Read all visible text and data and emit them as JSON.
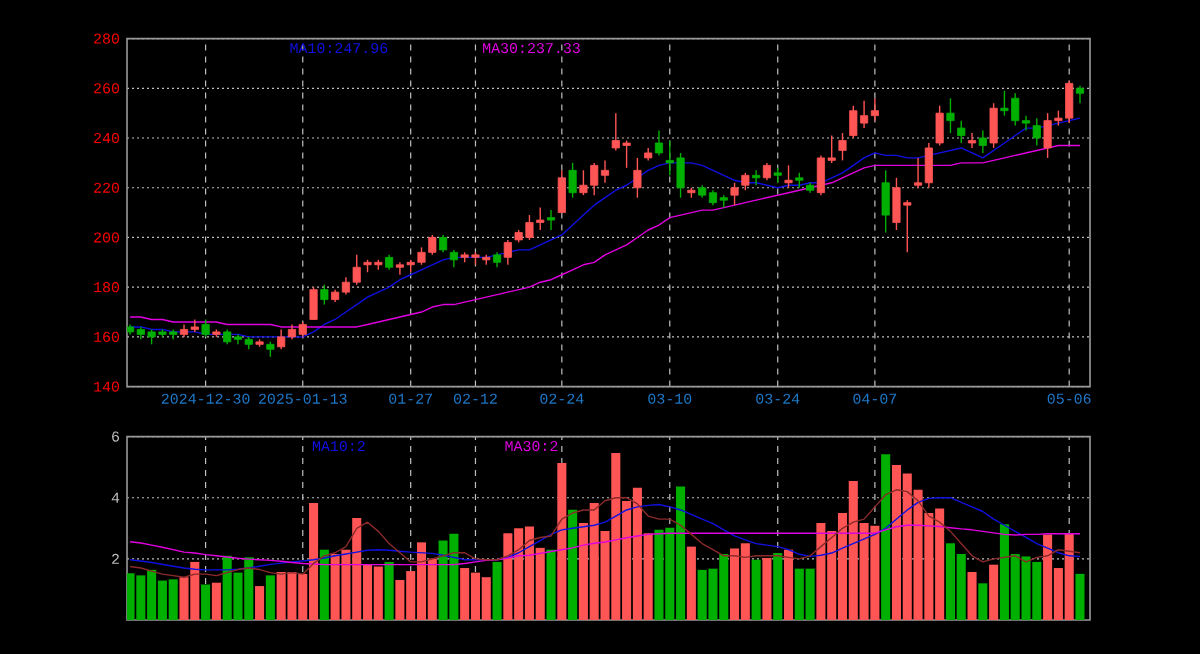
{
  "chart_data": [
    {
      "type": "candlestick",
      "categories": [
        null,
        null,
        null,
        null,
        null,
        null,
        null,
        "2024-12-30",
        null,
        null,
        null,
        null,
        null,
        null,
        null,
        null,
        "2025-01-13",
        null,
        null,
        null,
        null,
        null,
        null,
        null,
        null,
        null,
        "01-27",
        null,
        null,
        null,
        null,
        null,
        "02-12",
        null,
        null,
        null,
        null,
        null,
        null,
        null,
        "02-24",
        null,
        null,
        null,
        null,
        null,
        null,
        null,
        null,
        null,
        "03-10",
        null,
        null,
        null,
        null,
        null,
        null,
        null,
        null,
        null,
        "03-24",
        null,
        null,
        null,
        null,
        null,
        null,
        null,
        null,
        "04-07",
        null,
        null,
        null,
        null,
        null,
        null,
        null,
        null,
        null,
        null,
        null,
        null,
        null,
        null,
        null,
        null,
        null,
        "05-06",
        null
      ],
      "ohlc": [
        [
          164,
          165,
          161,
          162
        ],
        [
          163,
          164,
          159,
          161
        ],
        [
          162,
          163,
          157,
          160
        ],
        [
          162,
          163,
          160,
          161
        ],
        [
          162,
          163,
          159,
          161
        ],
        [
          161,
          165,
          160,
          163
        ],
        [
          163,
          167,
          162,
          164
        ],
        [
          165,
          167,
          160,
          161
        ],
        [
          161,
          163,
          160,
          162
        ],
        [
          162,
          163,
          157,
          158
        ],
        [
          160,
          161,
          157,
          159
        ],
        [
          159,
          160,
          155,
          157
        ],
        [
          157,
          159,
          156,
          158
        ],
        [
          157,
          158,
          152,
          155
        ],
        [
          156,
          163,
          155,
          160
        ],
        [
          160,
          165,
          159,
          163
        ],
        [
          161,
          166,
          160,
          165
        ],
        [
          167,
          180,
          167,
          179
        ],
        [
          179,
          181,
          173,
          175
        ],
        [
          175,
          179,
          174,
          178
        ],
        [
          178,
          184,
          177,
          182
        ],
        [
          182,
          193,
          181,
          188
        ],
        [
          189,
          191,
          186,
          190
        ],
        [
          189,
          191,
          187,
          190
        ],
        [
          192,
          193,
          187,
          188
        ],
        [
          188,
          190,
          185,
          189
        ],
        [
          189,
          191,
          186,
          190
        ],
        [
          190,
          196,
          189,
          194
        ],
        [
          194,
          201,
          193,
          200
        ],
        [
          200,
          201,
          194,
          195
        ],
        [
          194,
          195,
          188,
          191
        ],
        [
          192,
          194,
          190,
          193
        ],
        [
          192,
          194,
          189,
          193
        ],
        [
          191,
          193,
          189,
          192
        ],
        [
          193,
          194,
          188,
          190
        ],
        [
          192,
          199,
          189,
          198
        ],
        [
          199,
          203,
          198,
          202
        ],
        [
          200,
          209,
          199,
          206
        ],
        [
          206,
          212,
          203,
          207
        ],
        [
          208,
          211,
          203,
          207
        ],
        [
          210,
          227,
          210,
          224
        ],
        [
          227,
          230,
          216,
          218
        ],
        [
          218,
          227,
          217,
          221
        ],
        [
          221,
          230,
          217,
          229
        ],
        [
          225,
          231,
          222,
          227
        ],
        [
          236,
          250,
          235,
          239
        ],
        [
          237,
          239,
          228,
          238
        ],
        [
          220,
          232,
          216,
          227
        ],
        [
          232,
          236,
          231,
          234
        ],
        [
          238,
          243,
          233,
          234
        ],
        [
          231,
          239,
          225,
          230
        ],
        [
          232,
          234,
          216,
          220
        ],
        [
          218,
          220,
          216,
          219
        ],
        [
          220,
          221,
          216,
          217
        ],
        [
          218,
          219,
          213,
          214
        ],
        [
          216,
          217,
          212,
          215
        ],
        [
          217,
          222,
          213,
          220
        ],
        [
          221,
          226,
          219,
          225
        ],
        [
          225,
          227,
          221,
          224
        ],
        [
          224,
          230,
          223,
          229
        ],
        [
          226,
          228,
          222,
          225
        ],
        [
          222,
          229,
          220,
          223
        ],
        [
          224,
          226,
          220,
          223
        ],
        [
          221,
          222,
          218,
          219
        ],
        [
          218,
          233,
          217,
          232
        ],
        [
          231,
          241,
          230,
          232
        ],
        [
          235,
          242,
          231,
          239
        ],
        [
          241,
          253,
          240,
          251
        ],
        [
          246,
          255,
          244,
          249
        ],
        [
          249,
          256,
          247,
          251
        ],
        [
          222,
          227,
          202,
          209
        ],
        [
          206,
          224,
          203,
          220
        ],
        [
          213,
          215,
          194,
          214
        ],
        [
          221,
          232,
          220,
          222
        ],
        [
          222,
          238,
          220,
          236
        ],
        [
          238,
          253,
          237,
          250
        ],
        [
          250,
          256,
          242,
          247
        ],
        [
          244,
          247,
          238,
          241
        ],
        [
          238,
          242,
          236,
          239
        ],
        [
          240,
          243,
          234,
          237
        ],
        [
          238,
          254,
          236,
          252
        ],
        [
          252,
          259,
          249,
          251
        ],
        [
          256,
          258,
          245,
          247
        ],
        [
          247,
          249,
          243,
          246
        ],
        [
          245,
          248,
          237,
          240
        ],
        [
          236,
          250,
          232,
          247
        ],
        [
          247,
          251,
          245,
          248
        ],
        [
          248,
          263,
          246,
          262
        ],
        [
          260,
          261,
          254,
          258
        ]
      ],
      "colors": [
        "#00b000",
        "#00b000",
        "#00b000",
        "#00b000",
        "#00b000",
        "#ff5555",
        "#ff5555",
        "#00b000",
        "#ff5555",
        "#00b000",
        "#00b000",
        "#00b000",
        "#ff5555",
        "#00b000",
        "#ff5555",
        "#ff5555",
        "#ff5555",
        "#ff5555",
        "#00b000",
        "#ff5555",
        "#ff5555",
        "#ff5555",
        "#ff5555",
        "#ff5555",
        "#00b000",
        "#ff5555",
        "#ff5555",
        "#ff5555",
        "#ff5555",
        "#00b000",
        "#00b000",
        "#ff5555",
        "#ff5555",
        "#ff5555",
        "#00b000",
        "#ff5555",
        "#ff5555",
        "#ff5555",
        "#ff5555",
        "#00b000",
        "#ff5555",
        "#00b000",
        "#ff5555",
        "#ff5555",
        "#ff5555",
        "#ff5555",
        "#ff5555",
        "#ff5555",
        "#ff5555",
        "#00b000",
        "#00b000",
        "#00b000",
        "#ff5555",
        "#00b000",
        "#00b000",
        "#00b000",
        "#ff5555",
        "#ff5555",
        "#00b000",
        "#ff5555",
        "#00b000",
        "#ff5555",
        "#00b000",
        "#00b000",
        "#ff5555",
        "#ff5555",
        "#ff5555",
        "#ff5555",
        "#ff5555",
        "#ff5555",
        "#00b000",
        "#ff5555",
        "#ff5555",
        "#ff5555",
        "#ff5555",
        "#ff5555",
        "#00b000",
        "#00b000",
        "#ff5555",
        "#00b000",
        "#ff5555",
        "#00b000",
        "#00b000",
        "#00b000",
        "#00b000",
        "#ff5555",
        "#ff5555",
        "#ff5555",
        "#00b000"
      ],
      "series": [
        {
          "type": "line",
          "name": "MA10:247.96",
          "color": "#1010e0",
          "values": [
            164,
            164,
            163,
            163,
            162,
            162,
            162,
            161,
            161,
            161,
            161,
            160,
            160,
            160,
            160,
            160,
            160,
            162,
            165,
            167,
            170,
            173,
            176,
            178,
            180,
            183,
            185,
            187,
            189,
            191,
            192,
            192,
            192,
            192,
            193,
            194,
            195,
            195,
            197,
            199,
            201,
            205,
            209,
            213,
            216,
            219,
            221,
            224,
            227,
            229,
            230,
            230,
            230,
            229,
            227,
            225,
            223,
            222,
            222,
            221,
            220,
            221,
            221,
            222,
            222,
            224,
            226,
            229,
            232,
            234,
            233,
            233,
            232,
            232,
            233,
            234,
            235,
            236,
            234,
            232,
            235,
            238,
            241,
            244,
            244,
            245,
            246,
            247,
            248
          ]
        },
        {
          "type": "line",
          "name": "MA30:237.33",
          "color": "#e000e0",
          "values": [
            168,
            168,
            167,
            167,
            166,
            166,
            166,
            166,
            166,
            165,
            165,
            165,
            165,
            165,
            164,
            164,
            164,
            164,
            164,
            164,
            164,
            164,
            165,
            166,
            167,
            168,
            169,
            170,
            172,
            173,
            173,
            174,
            175,
            176,
            177,
            178,
            179,
            180,
            182,
            183,
            185,
            187,
            189,
            190,
            193,
            195,
            197,
            200,
            203,
            205,
            208,
            209,
            210,
            211,
            211,
            212,
            213,
            214,
            215,
            216,
            217,
            218,
            219,
            220,
            221,
            222,
            224,
            226,
            228,
            229,
            229,
            229,
            229,
            229,
            229,
            229,
            229,
            230,
            230,
            230,
            231,
            232,
            233,
            234,
            235,
            236,
            237,
            237,
            237
          ]
        }
      ],
      "ylim": [
        140,
        280
      ],
      "yticks": [
        140,
        160,
        180,
        200,
        220,
        240,
        260,
        280
      ],
      "grid": true,
      "legend": "top"
    },
    {
      "type": "bar",
      "categories": [
        null,
        null,
        null,
        null,
        null,
        null,
        null,
        null,
        null,
        null,
        null,
        null,
        null,
        null,
        null,
        null,
        null,
        null,
        null,
        null,
        null,
        null,
        null,
        null,
        null,
        null,
        null,
        null,
        null,
        null,
        null,
        null,
        null,
        null,
        null,
        null,
        null,
        null,
        null,
        null,
        null,
        null,
        null,
        null,
        null,
        null,
        null,
        null,
        null,
        null,
        null,
        null,
        null,
        null,
        null,
        null,
        null,
        null,
        null,
        null,
        null,
        null,
        null,
        null,
        null,
        null,
        null,
        null,
        null,
        null,
        null,
        null,
        null,
        null,
        null,
        null,
        null,
        null,
        null,
        null,
        null,
        null,
        null,
        null,
        null,
        null,
        null,
        null,
        null
      ],
      "tick_labels": "y",
      "series": [
        {
          "values": [
            1.53,
            1.46,
            1.64,
            1.29,
            1.33,
            1.4,
            1.9,
            1.16,
            1.22,
            2.1,
            1.55,
            2.05,
            1.11,
            1.46,
            1.57,
            1.57,
            1.51,
            3.83,
            2.3,
            2.16,
            2.3,
            3.34,
            1.81,
            1.75,
            1.9,
            1.31,
            1.6,
            2.54,
            2.01,
            2.6,
            2.82,
            1.7,
            1.55,
            1.4,
            1.9,
            2.84,
            3.0,
            3.06,
            2.36,
            2.3,
            5.14,
            3.61,
            3.17,
            3.83,
            2.91,
            5.46,
            3.89,
            4.33,
            2.84,
            2.95,
            3.02,
            4.37,
            2.4,
            1.64,
            1.68,
            2.16,
            2.34,
            2.51,
            1.97,
            2.03,
            2.19,
            2.3,
            1.68,
            1.68,
            3.17,
            2.91,
            3.5,
            4.55,
            3.17,
            3.08,
            5.42,
            5.07,
            4.79,
            4.26,
            3.5,
            3.65,
            2.51,
            2.16,
            1.57,
            1.2,
            1.81,
            3.13,
            2.16,
            2.08,
            1.9,
            2.8,
            1.7,
            2.82,
            1.51
          ],
          "colors": [
            "#00b000",
            "#00b000",
            "#00b000",
            "#00b000",
            "#00b000",
            "#ff5555",
            "#ff5555",
            "#00b000",
            "#ff5555",
            "#00b000",
            "#00b000",
            "#00b000",
            "#ff5555",
            "#00b000",
            "#ff5555",
            "#ff5555",
            "#ff5555",
            "#ff5555",
            "#00b000",
            "#ff5555",
            "#ff5555",
            "#ff5555",
            "#ff5555",
            "#ff5555",
            "#00b000",
            "#ff5555",
            "#ff5555",
            "#ff5555",
            "#ff5555",
            "#00b000",
            "#00b000",
            "#ff5555",
            "#ff5555",
            "#ff5555",
            "#00b000",
            "#ff5555",
            "#ff5555",
            "#ff5555",
            "#ff5555",
            "#00b000",
            "#ff5555",
            "#00b000",
            "#ff5555",
            "#ff5555",
            "#ff5555",
            "#ff5555",
            "#ff5555",
            "#ff5555",
            "#ff5555",
            "#00b000",
            "#00b000",
            "#00b000",
            "#ff5555",
            "#00b000",
            "#00b000",
            "#00b000",
            "#ff5555",
            "#ff5555",
            "#00b000",
            "#ff5555",
            "#00b000",
            "#ff5555",
            "#00b000",
            "#00b000",
            "#ff5555",
            "#ff5555",
            "#ff5555",
            "#ff5555",
            "#ff5555",
            "#ff5555",
            "#00b000",
            "#ff5555",
            "#ff5555",
            "#ff5555",
            "#ff5555",
            "#ff5555",
            "#00b000",
            "#00b000",
            "#ff5555",
            "#00b000",
            "#ff5555",
            "#00b000",
            "#00b000",
            "#00b000",
            "#00b000",
            "#ff5555",
            "#ff5555",
            "#ff5555",
            "#00b000"
          ]
        },
        {
          "type": "line",
          "name": "MA10:2",
          "color": "#1010e0",
          "values": [
            1.97,
            1.93,
            1.88,
            1.82,
            1.76,
            1.7,
            1.66,
            1.64,
            1.64,
            1.64,
            1.66,
            1.7,
            1.76,
            1.82,
            1.86,
            1.9,
            1.93,
            1.97,
            2.03,
            2.1,
            2.16,
            2.22,
            2.28,
            2.3,
            2.28,
            2.25,
            2.22,
            2.2,
            2.18,
            2.12,
            2.05,
            1.97,
            1.97,
            1.97,
            1.97,
            2.05,
            2.2,
            2.4,
            2.6,
            2.8,
            2.95,
            3.0,
            3.05,
            3.1,
            3.2,
            3.4,
            3.6,
            3.7,
            3.75,
            3.78,
            3.7,
            3.6,
            3.45,
            3.3,
            3.15,
            2.95,
            2.75,
            2.62,
            2.5,
            2.45,
            2.4,
            2.3,
            2.15,
            2.08,
            2.12,
            2.19,
            2.35,
            2.5,
            2.65,
            2.8,
            3.0,
            3.3,
            3.6,
            3.85,
            3.98,
            4.0,
            4.0,
            3.85,
            3.7,
            3.55,
            3.3,
            3.1,
            2.9,
            2.7,
            2.5,
            2.35,
            2.2,
            2.1,
            2.08
          ]
        },
        {
          "type": "line",
          "name": "MA30:2",
          "color": "#e000e0",
          "values": [
            2.56,
            2.52,
            2.45,
            2.38,
            2.3,
            2.22,
            2.19,
            2.14,
            2.1,
            2.06,
            2.02,
            1.99,
            1.97,
            1.95,
            1.92,
            1.88,
            1.85,
            1.83,
            1.81,
            1.81,
            1.81,
            1.81,
            1.81,
            1.81,
            1.81,
            1.81,
            1.81,
            1.81,
            1.81,
            1.81,
            1.81,
            1.85,
            1.9,
            1.95,
            1.97,
            2.03,
            2.1,
            2.12,
            2.18,
            2.24,
            2.3,
            2.36,
            2.45,
            2.51,
            2.55,
            2.62,
            2.69,
            2.75,
            2.8,
            2.82,
            2.84,
            2.84,
            2.84,
            2.84,
            2.84,
            2.84,
            2.84,
            2.84,
            2.84,
            2.84,
            2.84,
            2.84,
            2.84,
            2.84,
            2.84,
            2.84,
            2.84,
            2.84,
            2.84,
            2.84,
            2.95,
            3.05,
            3.1,
            3.1,
            3.08,
            3.06,
            3.02,
            2.98,
            2.95,
            2.9,
            2.85,
            2.8,
            2.78,
            2.8,
            2.8,
            2.82,
            2.82,
            2.82,
            2.82
          ]
        },
        {
          "type": "line",
          "color": "#8b2a2a",
          "values": [
            1.75,
            1.7,
            1.6,
            1.5,
            1.45,
            1.4,
            1.5,
            1.5,
            1.45,
            1.55,
            1.65,
            1.7,
            1.65,
            1.55,
            1.5,
            1.55,
            1.5,
            1.85,
            2.1,
            2.2,
            2.4,
            3.0,
            3.2,
            2.9,
            2.5,
            2.2,
            1.9,
            1.9,
            2.0,
            2.1,
            2.2,
            2.2,
            2.0,
            1.97,
            1.97,
            2.1,
            2.3,
            2.6,
            2.7,
            2.75,
            3.3,
            3.5,
            3.6,
            3.6,
            3.9,
            4.0,
            4.0,
            3.8,
            3.4,
            3.3,
            3.3,
            3.1,
            2.8,
            2.5,
            2.3,
            2.1,
            2.1,
            2.05,
            2.1,
            2.1,
            2.1,
            2.05,
            2.0,
            2.1,
            2.4,
            2.7,
            3.0,
            3.2,
            3.3,
            3.7,
            4.1,
            4.26,
            4.2,
            3.9,
            3.4,
            3.2,
            2.9,
            2.5,
            2.1,
            1.9,
            2.0,
            2.05,
            2.1,
            1.9,
            2.05,
            2.1,
            2.3,
            2.25,
            2.2
          ]
        }
      ],
      "ylim": [
        0,
        6
      ],
      "yticks": [
        2,
        4,
        6
      ],
      "grid": true,
      "legend": "top"
    }
  ]
}
